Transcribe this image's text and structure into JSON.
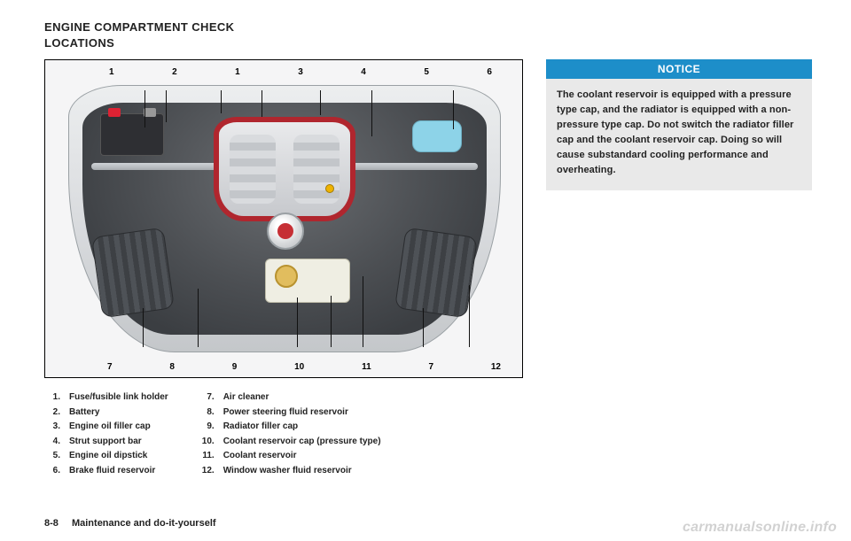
{
  "title_line1": "ENGINE COMPARTMENT CHECK",
  "title_line2": "LOCATIONS",
  "callouts_top": [
    "1",
    "2",
    "1",
    "3",
    "4",
    "5",
    "6"
  ],
  "callouts_bottom": [
    "7",
    "8",
    "9",
    "10",
    "11",
    "7",
    "12"
  ],
  "list_left": [
    {
      "n": "1.",
      "t": "Fuse/fusible link holder"
    },
    {
      "n": "2.",
      "t": "Battery"
    },
    {
      "n": "3.",
      "t": "Engine oil filler cap"
    },
    {
      "n": "4.",
      "t": "Strut support bar"
    },
    {
      "n": "5.",
      "t": "Engine oil dipstick"
    },
    {
      "n": "6.",
      "t": "Brake fluid reservoir"
    }
  ],
  "list_right": [
    {
      "n": "7.",
      "t": "Air cleaner"
    },
    {
      "n": "8.",
      "t": "Power steering fluid reservoir"
    },
    {
      "n": "9.",
      "t": "Radiator filler cap"
    },
    {
      "n": "10.",
      "t": "Coolant reservoir cap (pressure type)"
    },
    {
      "n": "11.",
      "t": "Coolant reservoir"
    },
    {
      "n": "12.",
      "t": "Window washer fluid reservoir"
    }
  ],
  "notice": {
    "head": "NOTICE",
    "body": "The coolant reservoir is equipped with a pressure type cap, and the radiator is equipped with a non-pressure type cap. Do not switch the radiator filler cap and the coolant reservoir cap. Doing so will cause substandard cooling performance and overheating."
  },
  "footer": {
    "page": "8-8",
    "section": "Maintenance and do-it-yourself"
  },
  "watermark": "carmanualsonline.info",
  "colors": {
    "notice_bg": "#1d8ec9",
    "notice_body_bg": "#e9e9e9",
    "accent_red": "#b0262e",
    "washer": "#8dd3e8",
    "dipstick": "#efb300"
  }
}
